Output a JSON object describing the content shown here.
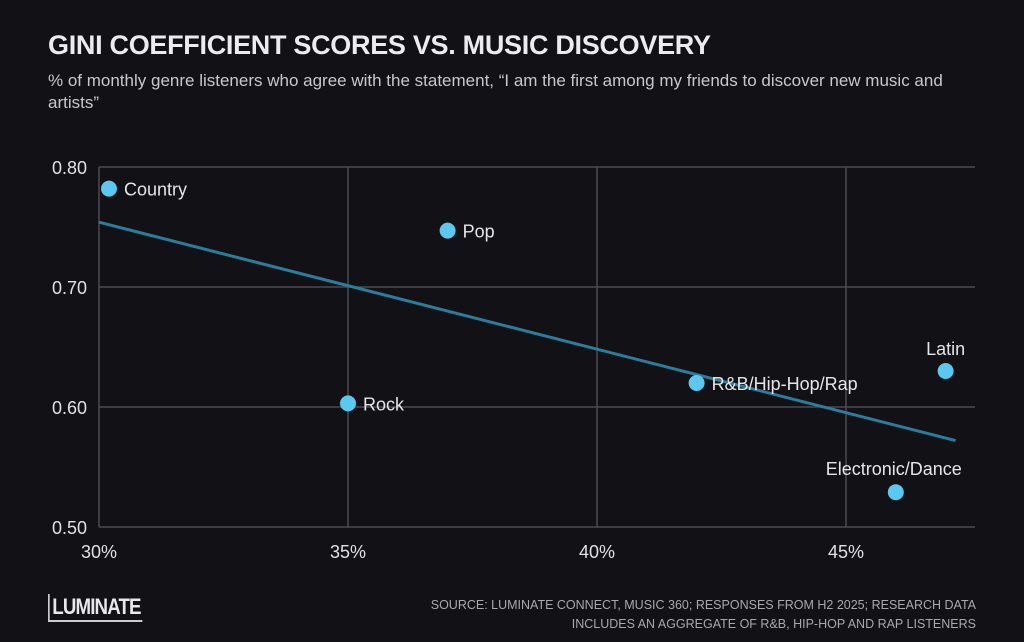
{
  "chart_data": {
    "type": "scatter",
    "title": "GINI COEFFICIENT SCORES VS. MUSIC DISCOVERY",
    "subtitle": "% of monthly genre listeners who agree with the statement, “I am the first among my friends to discover new music and artists”",
    "xlim": [
      30,
      47.5
    ],
    "ylim": [
      0.5,
      0.8
    ],
    "x_ticks": [
      30,
      35,
      40,
      45
    ],
    "x_tick_labels": [
      "30%",
      "35%",
      "40%",
      "45%"
    ],
    "y_ticks": [
      0.5,
      0.6,
      0.7,
      0.8
    ],
    "y_tick_labels": [
      "0.50",
      "0.60",
      "0.70",
      "0.80"
    ],
    "grid": true,
    "points": [
      {
        "label": "Country",
        "x": 30.2,
        "y": 0.782
      },
      {
        "label": "Pop",
        "x": 37.0,
        "y": 0.747
      },
      {
        "label": "Rock",
        "x": 35.0,
        "y": 0.603
      },
      {
        "label": "R&B/Hip-Hop/Rap",
        "x": 42.0,
        "y": 0.62
      },
      {
        "label": "Latin",
        "x": 47.0,
        "y": 0.63
      },
      {
        "label": "Electronic/Dance",
        "x": 46.0,
        "y": 0.529
      }
    ],
    "trendline": {
      "x": [
        30,
        47.2
      ],
      "y": [
        0.754,
        0.572
      ]
    },
    "colors": {
      "point": "#5bc8f0",
      "trendline": "#2b7d9c",
      "grid": "#4a4a50",
      "background": "#111116"
    }
  },
  "footer": {
    "logo": "LUMINATE",
    "source": "SOURCE: LUMINATE CONNECT, MUSIC 360; RESPONSES FROM H2 2025; RESEARCH DATA INCLUDES AN AGGREGATE OF R&B, HIP-HOP AND RAP LISTENERS"
  }
}
